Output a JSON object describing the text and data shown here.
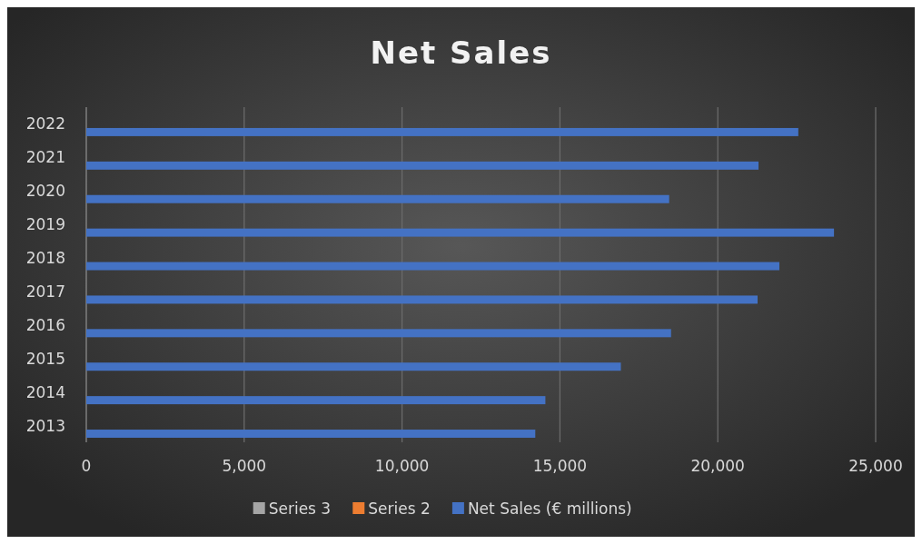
{
  "chart_data": {
    "type": "bar",
    "orientation": "horizontal",
    "title": "Net Sales",
    "categories": [
      "2022",
      "2021",
      "2020",
      "2019",
      "2018",
      "2017",
      "2016",
      "2015",
      "2014",
      "2013"
    ],
    "series": [
      {
        "name": "Net Sales (€ millions)",
        "color": "#4472c4",
        "values": [
          22550,
          21290,
          18460,
          23680,
          21950,
          21260,
          18520,
          16930,
          14540,
          14220
        ]
      },
      {
        "name": "Series 2",
        "color": "#ed7d31",
        "values": [
          null,
          null,
          null,
          null,
          null,
          null,
          null,
          null,
          null,
          null
        ]
      },
      {
        "name": "Series 3",
        "color": "#a5a5a5",
        "values": [
          null,
          null,
          null,
          null,
          null,
          null,
          null,
          null,
          null,
          null
        ]
      }
    ],
    "xlim": [
      0,
      25000
    ],
    "xticks": [
      0,
      {
        "value": 5000,
        "label": "5,000"
      },
      {
        "value": 10000,
        "label": "10,000"
      },
      {
        "value": 15000,
        "label": "15,000"
      },
      {
        "value": 20000,
        "label": "20,000"
      },
      {
        "value": 25000,
        "label": "25,000"
      }
    ],
    "grid": "x",
    "legend": "bottom"
  }
}
